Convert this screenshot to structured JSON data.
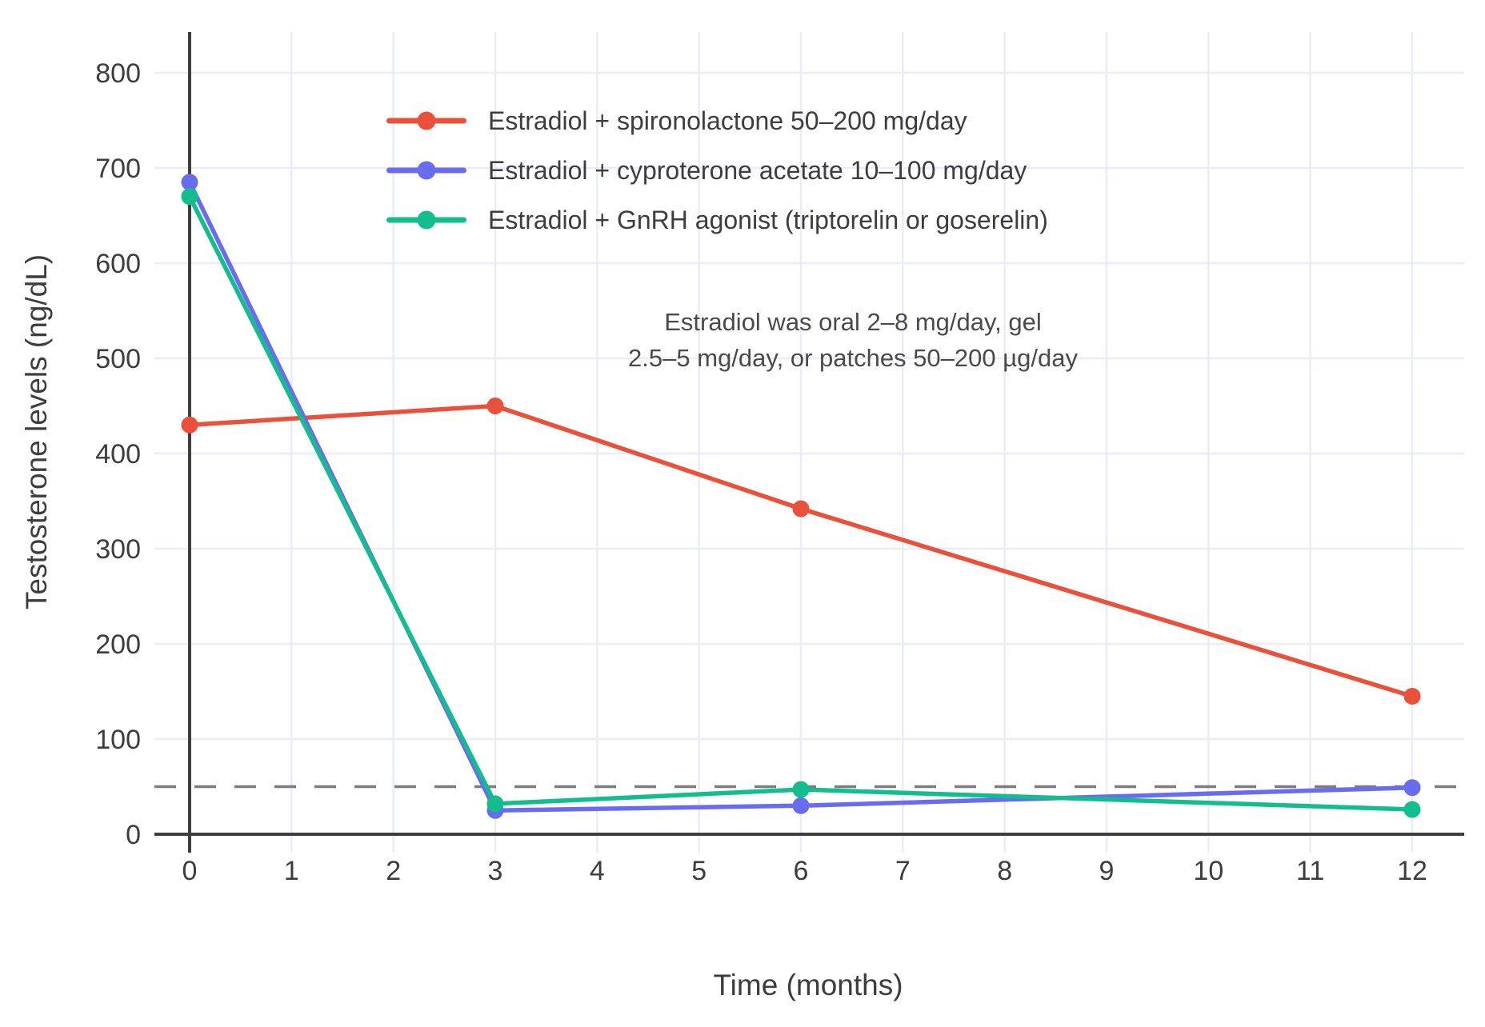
{
  "chart_data": {
    "type": "line",
    "title": "",
    "xlabel": "Time (months)",
    "ylabel": "Testosterone levels (ng/dL)",
    "x": [
      0,
      3,
      6,
      12
    ],
    "series": [
      {
        "name": "Estradiol + spironolactone 50–200 mg/day",
        "color": "#e9513b",
        "values": [
          430,
          450,
          342,
          145
        ]
      },
      {
        "name": "Estradiol + cyproterone acetate 10–100 mg/day",
        "color": "#6a6cf0",
        "values": [
          685,
          25,
          30,
          49
        ]
      },
      {
        "name": "Estradiol + GnRH agonist (triptorelin or goserelin)",
        "color": "#13bd8d",
        "values": [
          670,
          32,
          47,
          26
        ]
      }
    ],
    "threshold_line": {
      "value": 50,
      "style": "dashed",
      "color": "#7d7d7d"
    },
    "x_ticks": [
      0,
      1,
      2,
      3,
      4,
      5,
      6,
      7,
      8,
      9,
      10,
      11,
      12
    ],
    "y_ticks": [
      0,
      100,
      200,
      300,
      400,
      500,
      600,
      700,
      800
    ],
    "xlim": [
      0,
      12
    ],
    "ylim": [
      0,
      840
    ],
    "grid": true,
    "legend_position": "inside-top-left",
    "annotation": {
      "line1": "Estradiol was oral 2–8 mg/day, gel",
      "line2": "2.5–5 mg/day, or patches 50–200 µg/day"
    },
    "style": {
      "grid_color": "#e9edf7",
      "axis_color": "#3e3e3e",
      "tick_label_color": "#3d3d3d",
      "marker_radius": 10.5,
      "line_width": 5.5
    }
  }
}
